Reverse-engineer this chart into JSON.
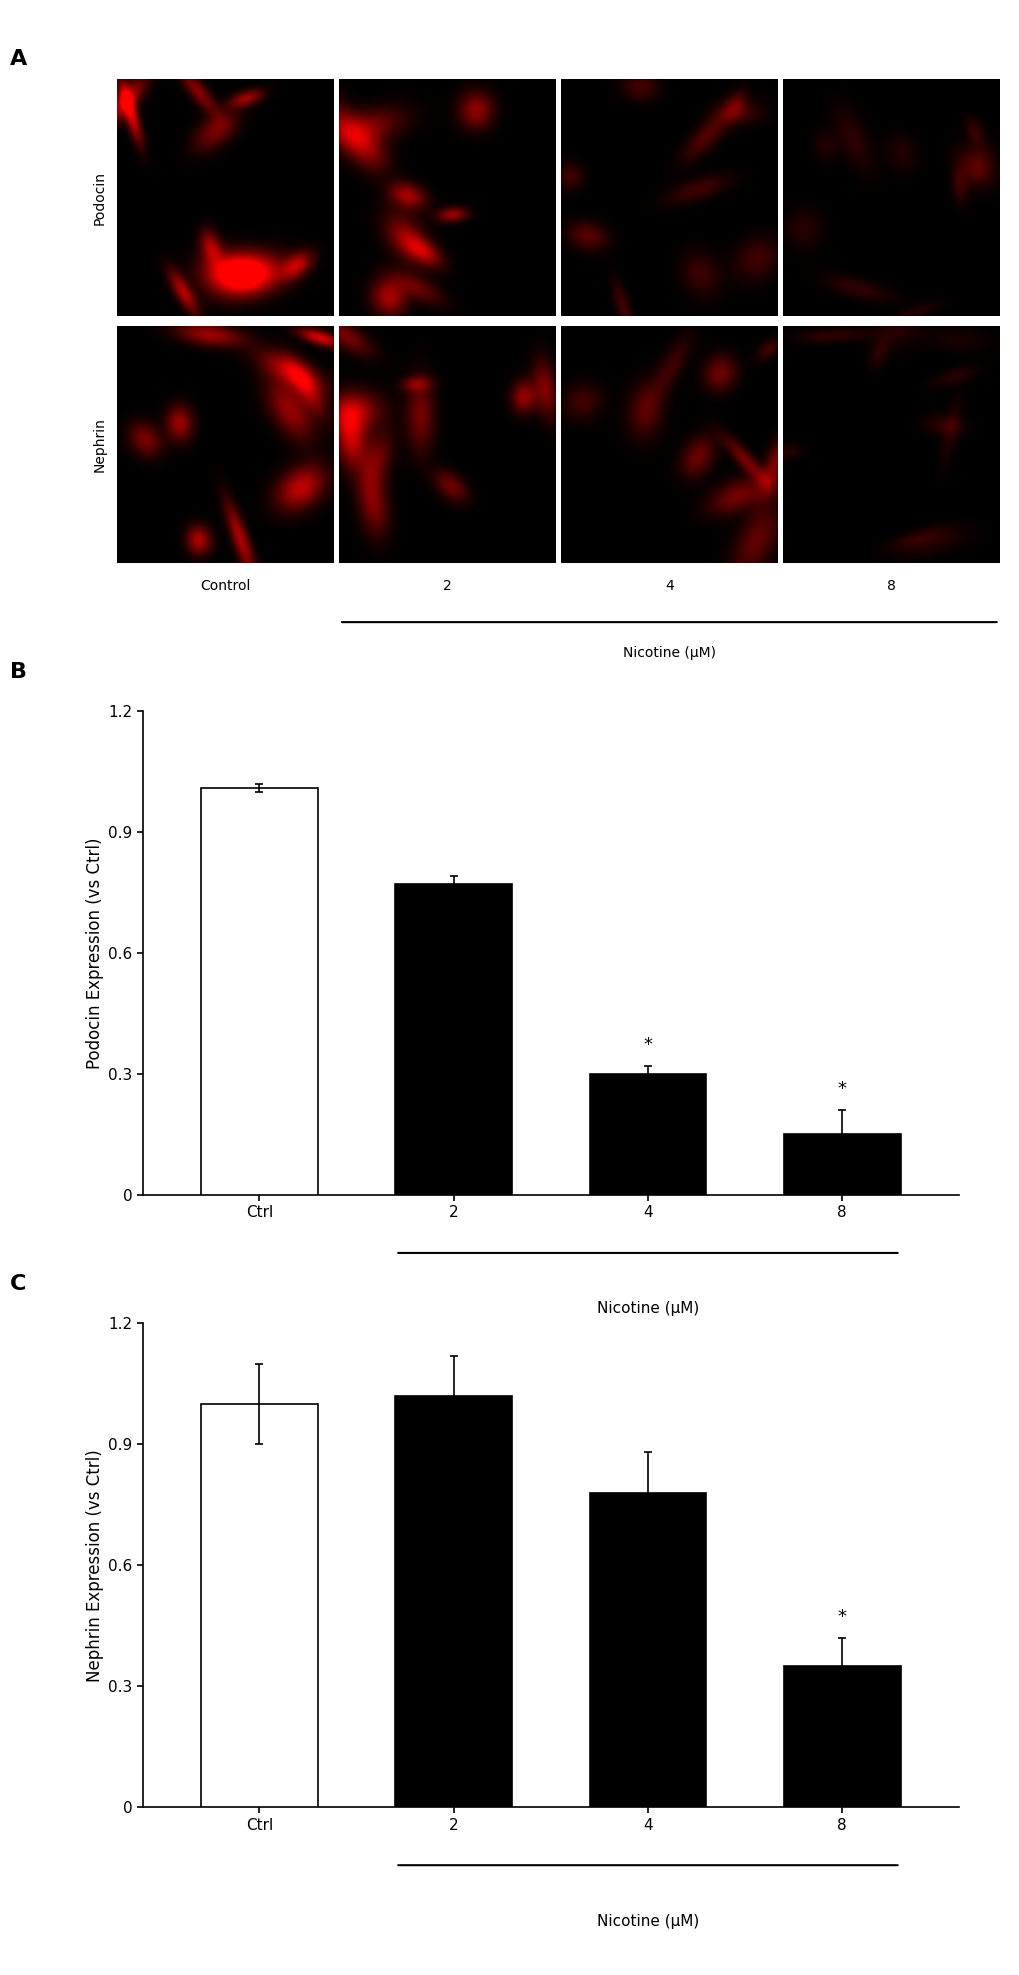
{
  "panel_A_label": "A",
  "panel_B_label": "B",
  "panel_C_label": "C",
  "podocin_row_label": "Podocin",
  "nephrin_row_label": "Nephrin",
  "col_labels_bottom": [
    "Control",
    "2",
    "4",
    "8"
  ],
  "nicotine_label_A": "Nicotine (μM)",
  "B_categories": [
    "Ctrl",
    "2",
    "4",
    "8"
  ],
  "B_values": [
    1.01,
    0.77,
    0.3,
    0.15
  ],
  "B_errors": [
    0.01,
    0.02,
    0.02,
    0.06
  ],
  "B_colors": [
    "white",
    "black",
    "black",
    "black"
  ],
  "B_ylabel": "Podocin Expression (vs Ctrl)",
  "B_nicotine_label": "Nicotine (μM)",
  "B_ylim": [
    0,
    1.2
  ],
  "B_yticks": [
    0,
    0.3,
    0.6,
    0.9,
    1.2
  ],
  "B_sig_bars": [
    2,
    3
  ],
  "C_categories": [
    "Ctrl",
    "2",
    "4",
    "8"
  ],
  "C_values": [
    1.0,
    1.02,
    0.78,
    0.35
  ],
  "C_errors": [
    0.1,
    0.1,
    0.1,
    0.07
  ],
  "C_colors": [
    "white",
    "black",
    "black",
    "black"
  ],
  "C_ylabel": "Nephrin Expression (vs Ctrl)",
  "C_nicotine_label": "Nicotine (μM)",
  "C_ylim": [
    0,
    1.2
  ],
  "C_yticks": [
    0,
    0.3,
    0.6,
    0.9,
    1.2
  ],
  "C_sig_bars": [
    3
  ],
  "bar_width": 0.6,
  "bar_edge_color": "black",
  "bar_edge_width": 1.2,
  "error_capsize": 3,
  "error_linewidth": 1.2,
  "font_size_label": 12,
  "font_size_tick": 11,
  "font_size_panel": 16,
  "font_size_star": 13,
  "background_color": "white"
}
